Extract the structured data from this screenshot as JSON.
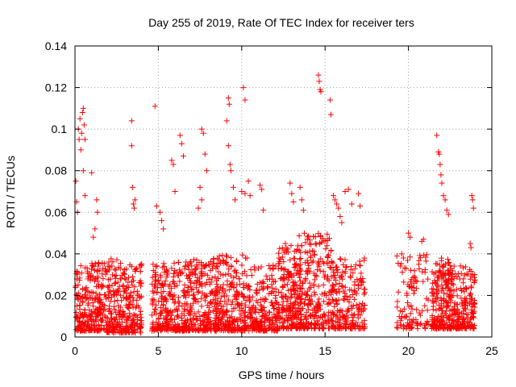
{
  "chart_data": {
    "type": "scatter",
    "title": "Day 255 of 2019, Rate Of TEC Index for receiver ters",
    "xlabel": "GPS time / hours",
    "ylabel": "ROTI / TECUs",
    "xlim": [
      0,
      25
    ],
    "ylim": [
      0,
      0.14
    ],
    "xticks": [
      0,
      5,
      10,
      15,
      20,
      25
    ],
    "xtick_labels": [
      "0",
      "5",
      "10",
      "15",
      "20",
      "25"
    ],
    "yticks": [
      0,
      0.02,
      0.04,
      0.06,
      0.08,
      0.1,
      0.12,
      0.14
    ],
    "ytick_labels": [
      "0",
      "0.02",
      "0.04",
      "0.06",
      "0.08",
      "0.1",
      "0.12",
      "0.14"
    ],
    "grid": true,
    "marker": "+",
    "color": "#ff0000",
    "series": [
      {
        "name": "ROTI",
        "points": [
          [
            0.05,
            0.075
          ],
          [
            0.1,
            0.065
          ],
          [
            0.15,
            0.06
          ],
          [
            0.2,
            0.1
          ],
          [
            0.25,
            0.095
          ],
          [
            0.3,
            0.105
          ],
          [
            0.35,
            0.09
          ],
          [
            0.4,
            0.098
          ],
          [
            0.45,
            0.108
          ],
          [
            0.5,
            0.11
          ],
          [
            0.55,
            0.102
          ],
          [
            0.6,
            0.095
          ],
          [
            0.5,
            0.08
          ],
          [
            1.0,
            0.079
          ],
          [
            0.6,
            0.068
          ],
          [
            1.3,
            0.066
          ],
          [
            1.35,
            0.06
          ],
          [
            1.2,
            0.052
          ],
          [
            1.1,
            0.048
          ],
          [
            3.4,
            0.104
          ],
          [
            3.4,
            0.092
          ],
          [
            3.45,
            0.072
          ],
          [
            3.6,
            0.066
          ],
          [
            3.5,
            0.064
          ],
          [
            3.55,
            0.062
          ],
          [
            4.8,
            0.111
          ],
          [
            4.9,
            0.063
          ],
          [
            5.1,
            0.06
          ],
          [
            5.2,
            0.056
          ],
          [
            5.3,
            0.052
          ],
          [
            5.8,
            0.085
          ],
          [
            5.9,
            0.083
          ],
          [
            6.0,
            0.07
          ],
          [
            6.3,
            0.097
          ],
          [
            6.4,
            0.093
          ],
          [
            6.5,
            0.087
          ],
          [
            7.6,
            0.1
          ],
          [
            7.7,
            0.098
          ],
          [
            7.8,
            0.088
          ],
          [
            7.9,
            0.08
          ],
          [
            7.5,
            0.072
          ],
          [
            7.6,
            0.066
          ],
          [
            7.4,
            0.062
          ],
          [
            9.2,
            0.115
          ],
          [
            9.25,
            0.112
          ],
          [
            9.1,
            0.104
          ],
          [
            9.2,
            0.092
          ],
          [
            9.3,
            0.083
          ],
          [
            9.35,
            0.08
          ],
          [
            9.5,
            0.072
          ],
          [
            9.6,
            0.066
          ],
          [
            10.1,
            0.12
          ],
          [
            10.2,
            0.114
          ],
          [
            10.0,
            0.07
          ],
          [
            10.2,
            0.069
          ],
          [
            10.4,
            0.075
          ],
          [
            10.5,
            0.068
          ],
          [
            11.1,
            0.073
          ],
          [
            11.2,
            0.071
          ],
          [
            11.3,
            0.061
          ],
          [
            12.9,
            0.074
          ],
          [
            13.0,
            0.069
          ],
          [
            13.1,
            0.065
          ],
          [
            13.5,
            0.072
          ],
          [
            13.6,
            0.066
          ],
          [
            13.7,
            0.061
          ],
          [
            14.6,
            0.126
          ],
          [
            14.65,
            0.123
          ],
          [
            14.7,
            0.119
          ],
          [
            14.75,
            0.118
          ],
          [
            15.3,
            0.114
          ],
          [
            15.35,
            0.107
          ],
          [
            15.5,
            0.068
          ],
          [
            15.6,
            0.066
          ],
          [
            15.7,
            0.064
          ],
          [
            15.8,
            0.062
          ],
          [
            15.9,
            0.058
          ],
          [
            16.0,
            0.055
          ],
          [
            16.2,
            0.07
          ],
          [
            16.4,
            0.071
          ],
          [
            16.6,
            0.064
          ],
          [
            17.0,
            0.069
          ],
          [
            17.1,
            0.063
          ],
          [
            21.7,
            0.097
          ],
          [
            21.8,
            0.089
          ],
          [
            21.85,
            0.088
          ],
          [
            21.9,
            0.083
          ],
          [
            21.95,
            0.078
          ],
          [
            22.0,
            0.074
          ],
          [
            22.1,
            0.068
          ],
          [
            22.2,
            0.066
          ],
          [
            22.3,
            0.061
          ],
          [
            22.4,
            0.059
          ],
          [
            23.8,
            0.068
          ],
          [
            23.85,
            0.066
          ],
          [
            23.9,
            0.062
          ],
          [
            23.7,
            0.045
          ],
          [
            23.75,
            0.043
          ],
          [
            20.0,
            0.05
          ],
          [
            20.1,
            0.048
          ],
          [
            20.9,
            0.047
          ],
          [
            20.8,
            0.046
          ],
          [
            19.6,
            0.04
          ],
          [
            19.7,
            0.038
          ]
        ],
        "clusters": [
          {
            "x": [
              0.0,
              1.8
            ],
            "y": [
              0.003,
              0.036
            ],
            "n": 260
          },
          {
            "x": [
              1.8,
              4.0
            ],
            "y": [
              0.002,
              0.038
            ],
            "n": 300
          },
          {
            "x": [
              4.6,
              6.6
            ],
            "y": [
              0.003,
              0.036
            ],
            "n": 260
          },
          {
            "x": [
              6.6,
              8.6
            ],
            "y": [
              0.003,
              0.038
            ],
            "n": 260
          },
          {
            "x": [
              8.4,
              10.4
            ],
            "y": [
              0.003,
              0.04
            ],
            "n": 260
          },
          {
            "x": [
              10.4,
              12.2
            ],
            "y": [
              0.003,
              0.035
            ],
            "n": 220
          },
          {
            "x": [
              12.2,
              13.6
            ],
            "y": [
              0.004,
              0.045
            ],
            "n": 220
          },
          {
            "x": [
              13.4,
              15.4
            ],
            "y": [
              0.004,
              0.05
            ],
            "n": 260
          },
          {
            "x": [
              15.4,
              17.4
            ],
            "y": [
              0.004,
              0.038
            ],
            "n": 220
          },
          {
            "x": [
              19.3,
              21.2
            ],
            "y": [
              0.004,
              0.04
            ],
            "n": 110
          },
          {
            "x": [
              21.4,
              22.6
            ],
            "y": [
              0.004,
              0.038
            ],
            "n": 200
          },
          {
            "x": [
              22.4,
              24.0
            ],
            "y": [
              0.004,
              0.035
            ],
            "n": 200
          }
        ]
      }
    ]
  }
}
